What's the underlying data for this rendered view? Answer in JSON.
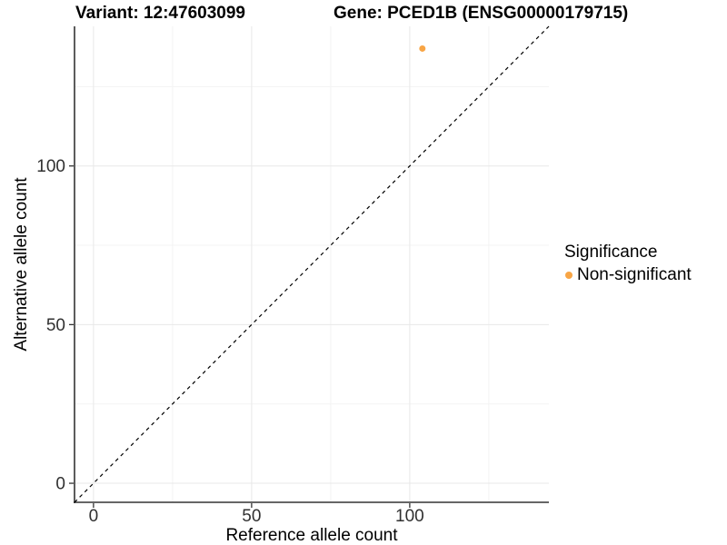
{
  "titles": {
    "variant": "Variant: 12:47603099",
    "gene": "Gene: PCED1B (ENSG00000179715)"
  },
  "chart_data": {
    "type": "scatter",
    "title_left": "Variant: 12:47603099",
    "title_right": "Gene: PCED1B (ENSG00000179715)",
    "xlabel": "Reference allele count",
    "ylabel": "Alternative allele count",
    "xlim": [
      -6,
      144
    ],
    "ylim": [
      -6,
      144
    ],
    "xticks": [
      0,
      50,
      100
    ],
    "yticks": [
      0,
      50,
      100
    ],
    "minor_xticks": [
      25,
      75,
      125
    ],
    "minor_yticks": [
      25,
      75,
      125
    ],
    "grid": "major and minor gridlines, white panel background",
    "reference_line": {
      "type": "identity y=x",
      "style": "dashed",
      "color": "#000000",
      "span": [
        -6,
        144
      ]
    },
    "points": [
      {
        "x": 104,
        "y": 137,
        "series": "Non-significant",
        "color": "#F8A545",
        "radius": 3.5
      }
    ],
    "legend": {
      "title": "Significance",
      "position": "right",
      "entries": [
        {
          "label": "Non-significant",
          "color": "#F8A545"
        }
      ]
    },
    "colors": {
      "point_orange": "#F8A545",
      "grid_major": "#E8E8E8",
      "grid_minor": "#F3F3F3",
      "axis_line": "#333333",
      "tick_label": "#303030",
      "text": "#000000"
    }
  }
}
